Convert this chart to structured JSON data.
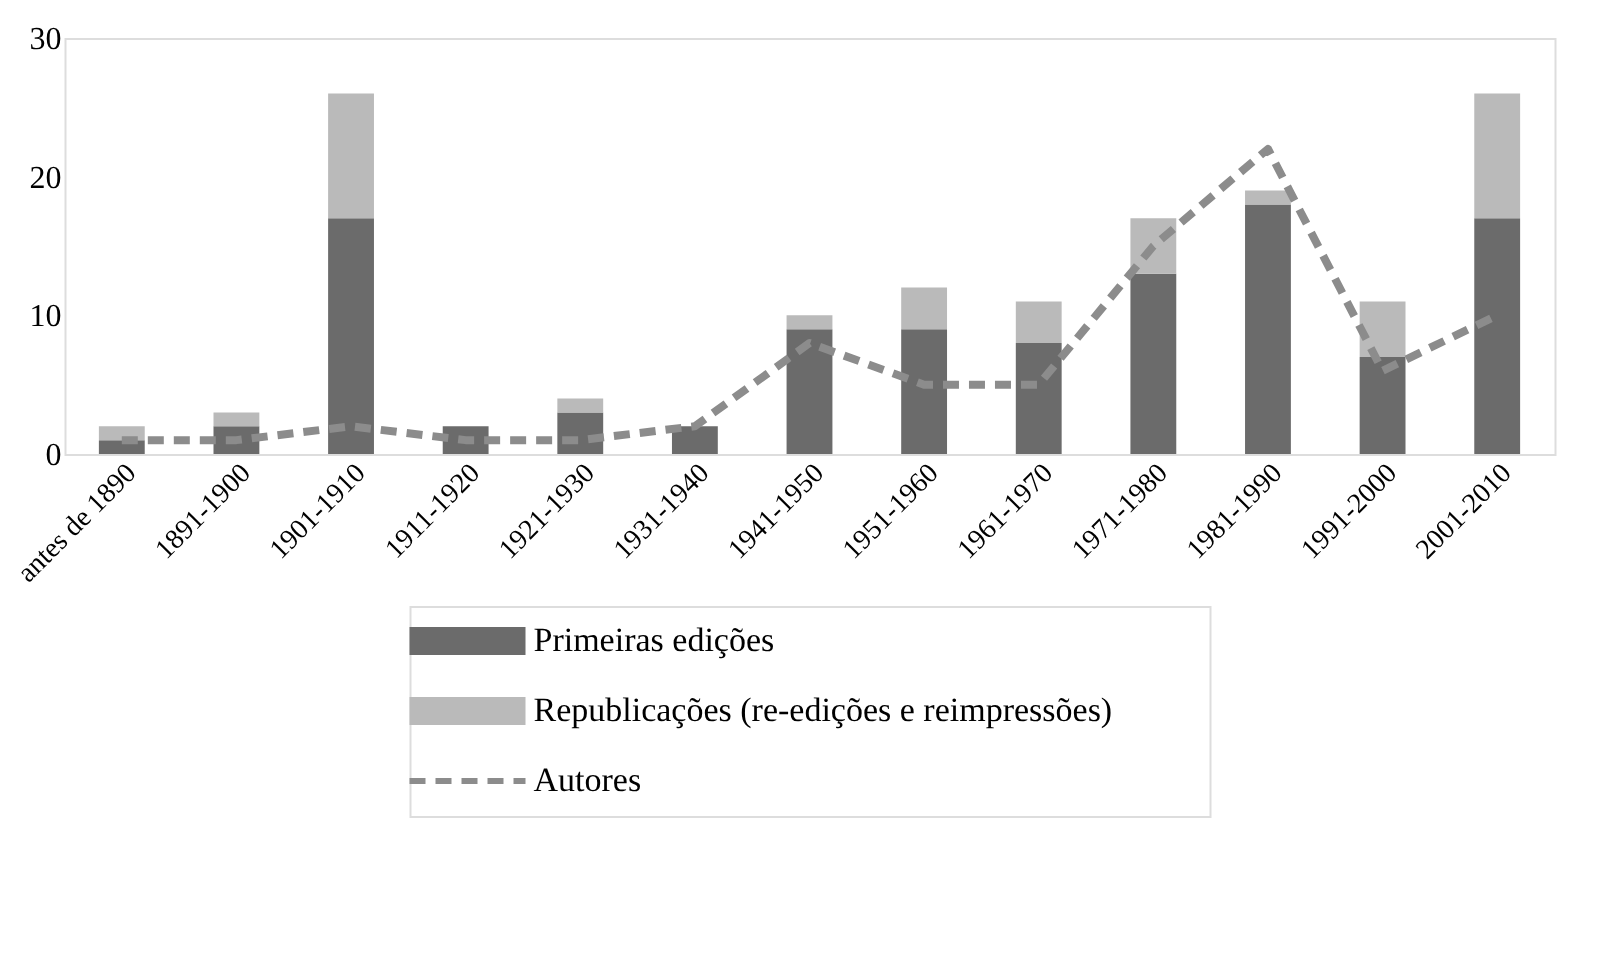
{
  "chart_data": {
    "type": "bar",
    "stacked": true,
    "categories": [
      "antes de 1890",
      "1891-1900",
      "1901-1910",
      "1911-1920",
      "1921-1930",
      "1931-1940",
      "1941-1950",
      "1951-1960",
      "1961-1970",
      "1971-1980",
      "1981-1990",
      "1991-2000",
      "2001-2010"
    ],
    "series": [
      {
        "name": "Primeiras edições",
        "color": "#6b6b6b",
        "values": [
          1,
          2,
          17,
          2,
          3,
          2,
          9,
          9,
          8,
          13,
          18,
          7,
          17
        ]
      },
      {
        "name": "Republicações (re-edições e reimpressões)",
        "color": "#bababa",
        "values": [
          1,
          1,
          9,
          0,
          1,
          0,
          1,
          3,
          3,
          4,
          1,
          4,
          9
        ]
      },
      {
        "name": "Autores",
        "type": "line",
        "line_style": "dashed",
        "color": "#8c8c8c",
        "values": [
          1,
          1,
          2,
          1,
          1,
          2,
          8,
          5,
          5,
          15,
          22,
          6,
          10
        ]
      }
    ],
    "ylim": [
      0,
      30
    ],
    "yticks": [
      0,
      10,
      20,
      30
    ],
    "grid": false,
    "legend": "bottom",
    "marker": "none"
  }
}
